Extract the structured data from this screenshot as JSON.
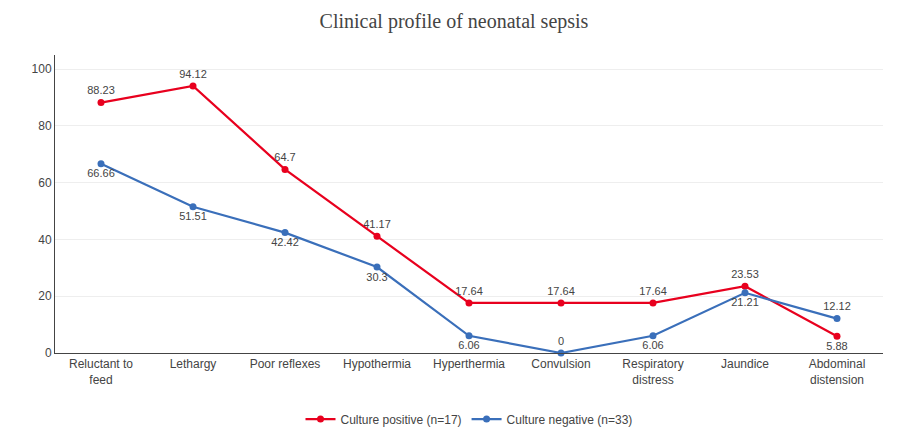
{
  "chart_data": {
    "type": "line",
    "title": "Clinical profile of neonatal sepsis",
    "categories": [
      "Reluctant to\nfeed",
      "Lethargy",
      "Poor reflexes",
      "Hypothermia",
      "Hyperthermia",
      "Convulsion",
      "Respiratory\ndistress",
      "Jaundice",
      "Abdominal\ndistension"
    ],
    "series": [
      {
        "name": "Culture positive (n=17)",
        "color": "#e8001e",
        "marker": "circle",
        "values": [
          88.23,
          94.12,
          64.7,
          41.17,
          17.64,
          17.64,
          17.64,
          23.53,
          5.88
        ]
      },
      {
        "name": "Culture negative (n=33)",
        "color": "#3a6fba",
        "marker": "circle",
        "values": [
          66.66,
          51.51,
          42.42,
          30.3,
          6.06,
          0,
          6.06,
          21.21,
          12.12
        ]
      }
    ],
    "ylim": [
      0,
      105
    ],
    "yticks": [
      0,
      20,
      40,
      60,
      80,
      100
    ],
    "grid": true,
    "legend": "bottom",
    "data_labels": true
  }
}
